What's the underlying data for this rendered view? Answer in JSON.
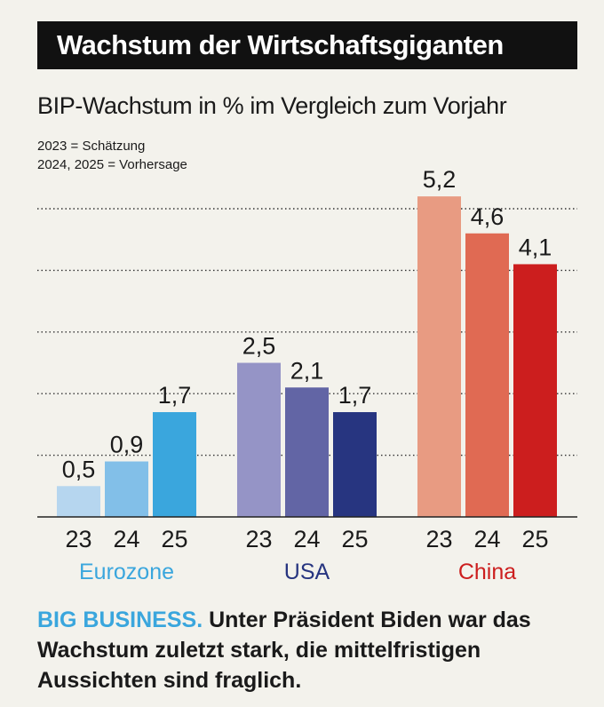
{
  "header": {
    "title": "Wachstum der Wirtschaftsgiganten",
    "subtitle": "BIP-Wachstum in % im Vergleich zum Vorjahr",
    "note_1": "2023 = Schätzung",
    "note_2": "2024, 2025 = Vorhersage"
  },
  "chart_data": {
    "type": "bar",
    "title": "Wachstum der Wirtschaftsgiganten",
    "ylabel": "BIP-Wachstum in % im Vergleich zum Vorjahr",
    "ylim": [
      0,
      5.2
    ],
    "gridlines": [
      1,
      2,
      3,
      4,
      5
    ],
    "groups": [
      {
        "name": "Eurozone",
        "label_color": "#3aa6dd",
        "categories": [
          "23",
          "24",
          "25"
        ],
        "values": [
          0.5,
          0.9,
          1.7
        ],
        "labels": [
          "0,5",
          "0,9",
          "1,7"
        ],
        "colors": [
          "#b6d6ef",
          "#82bfe8",
          "#3aa6dd"
        ]
      },
      {
        "name": "USA",
        "label_color": "#273580",
        "categories": [
          "23",
          "24",
          "25"
        ],
        "values": [
          2.5,
          2.1,
          1.7
        ],
        "labels": [
          "2,5",
          "2,1",
          "1,7"
        ],
        "colors": [
          "#9594c6",
          "#6265a5",
          "#273580"
        ]
      },
      {
        "name": "China",
        "label_color": "#cc1e1e",
        "categories": [
          "23",
          "24",
          "25"
        ],
        "values": [
          5.2,
          4.6,
          4.1
        ],
        "labels": [
          "5,2",
          "4,6",
          "4,1"
        ],
        "colors": [
          "#e89b82",
          "#e06a53",
          "#cc1e1e"
        ]
      }
    ]
  },
  "footer": {
    "kicker": "BIG BUSINESS.",
    "text": " Unter Präsident Biden war das Wachstum zuletzt stark, die mittelfristigen Aussichten sind fraglich."
  }
}
